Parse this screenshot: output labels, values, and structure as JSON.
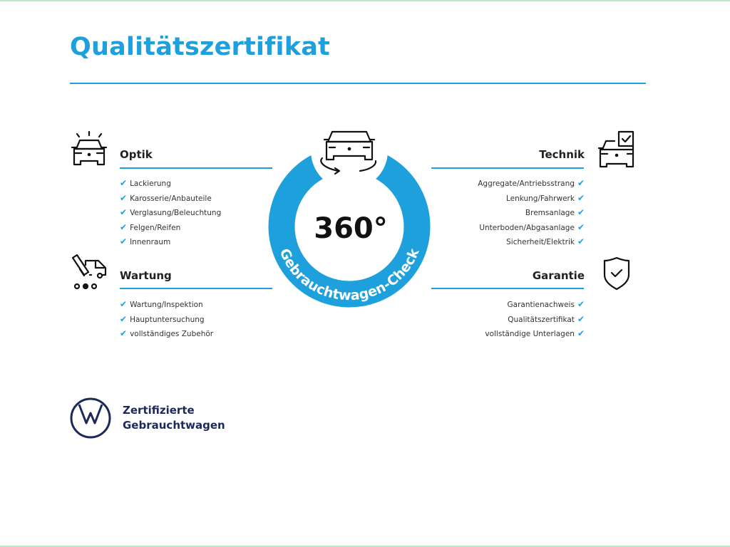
{
  "title": "Qualitätszertifikat",
  "badge": {
    "value": "360°",
    "ring_text": "Gebrauchtwagen-Check",
    "icon": "car-rotate-icon"
  },
  "colors": {
    "accent": "#1ea0dc",
    "brand_navy": "#1b2a5a"
  },
  "sections": {
    "optik": {
      "heading": "Optik",
      "icon": "car-lights-icon",
      "items": [
        "Lackierung",
        "Karosserie/Anbauteile",
        "Verglasung/Beleuchtung",
        "Felgen/Reifen",
        "Innenraum"
      ]
    },
    "wartung": {
      "heading": "Wartung",
      "icon": "maintenance-van-icon",
      "items": [
        "Wartung/Inspektion",
        "Hauptuntersuchung",
        "vollständiges Zubehör"
      ]
    },
    "technik": {
      "heading": "Technik",
      "icon": "car-checklist-icon",
      "items": [
        "Aggregate/Antriebsstrang",
        "Lenkung/Fahrwerk",
        "Bremsanlage",
        "Unterboden/Abgasanlage",
        "Sicherheit/Elektrik"
      ]
    },
    "garantie": {
      "heading": "Garantie",
      "icon": "shield-check-icon",
      "items": [
        "Garantienachweis",
        "Qualitätszertifikat",
        "vollständige Unterlagen"
      ]
    }
  },
  "check_mark": "✔",
  "brand": {
    "line1": "Zertifizierte",
    "line2": "Gebrauchtwagen",
    "logo": "VW"
  }
}
